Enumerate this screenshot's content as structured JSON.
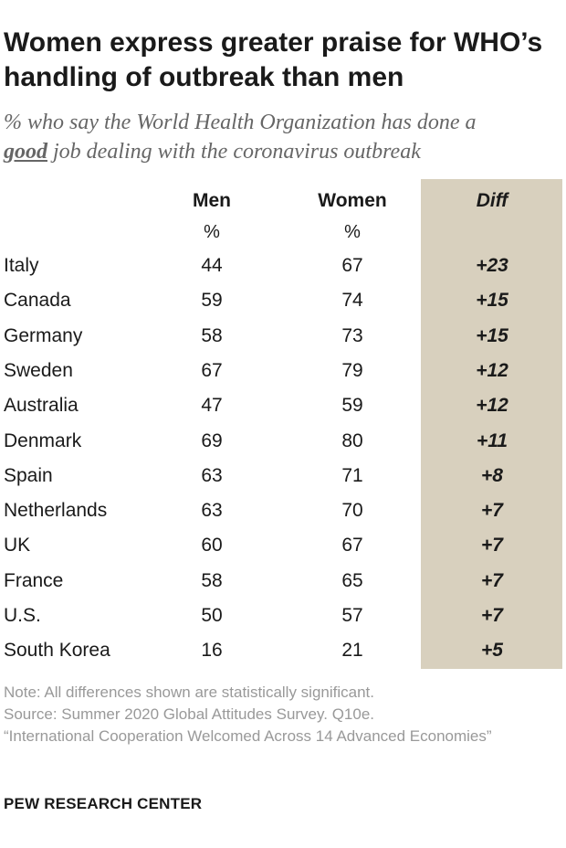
{
  "title": "Women express greater praise for WHO’s handling of outbreak than men",
  "subtitle_before": "% who say the World Health Organization has done a",
  "subtitle_emphasis": "good",
  "subtitle_after": " job dealing with the coronavirus outbreak",
  "colors": {
    "diff_band": "#d8d0be",
    "note_text": "#999999",
    "subtitle_text": "#666666"
  },
  "chart_data": {
    "type": "table",
    "columns": {
      "men": "Men",
      "women": "Women",
      "diff": "Diff"
    },
    "unit_label": "%",
    "rows": [
      {
        "country": "Italy",
        "men": 44,
        "women": 67,
        "diff": "+23"
      },
      {
        "country": "Canada",
        "men": 59,
        "women": 74,
        "diff": "+15"
      },
      {
        "country": "Germany",
        "men": 58,
        "women": 73,
        "diff": "+15"
      },
      {
        "country": "Sweden",
        "men": 67,
        "women": 79,
        "diff": "+12"
      },
      {
        "country": "Australia",
        "men": 47,
        "women": 59,
        "diff": "+12"
      },
      {
        "country": "Denmark",
        "men": 69,
        "women": 80,
        "diff": "+11"
      },
      {
        "country": "Spain",
        "men": 63,
        "women": 71,
        "diff": "+8"
      },
      {
        "country": "Netherlands",
        "men": 63,
        "women": 70,
        "diff": "+7"
      },
      {
        "country": "UK",
        "men": 60,
        "women": 67,
        "diff": "+7"
      },
      {
        "country": "France",
        "men": 58,
        "women": 65,
        "diff": "+7"
      },
      {
        "country": "U.S.",
        "men": 50,
        "women": 57,
        "diff": "+7"
      },
      {
        "country": "South Korea",
        "men": 16,
        "women": 21,
        "diff": "+5"
      }
    ]
  },
  "notes": {
    "note": "Note: All differences shown are statistically significant.",
    "source": "Source: Summer 2020 Global Attitudes Survey. Q10e.",
    "report": "“International Cooperation Welcomed Across 14 Advanced Economies”"
  },
  "brand": "PEW RESEARCH CENTER"
}
